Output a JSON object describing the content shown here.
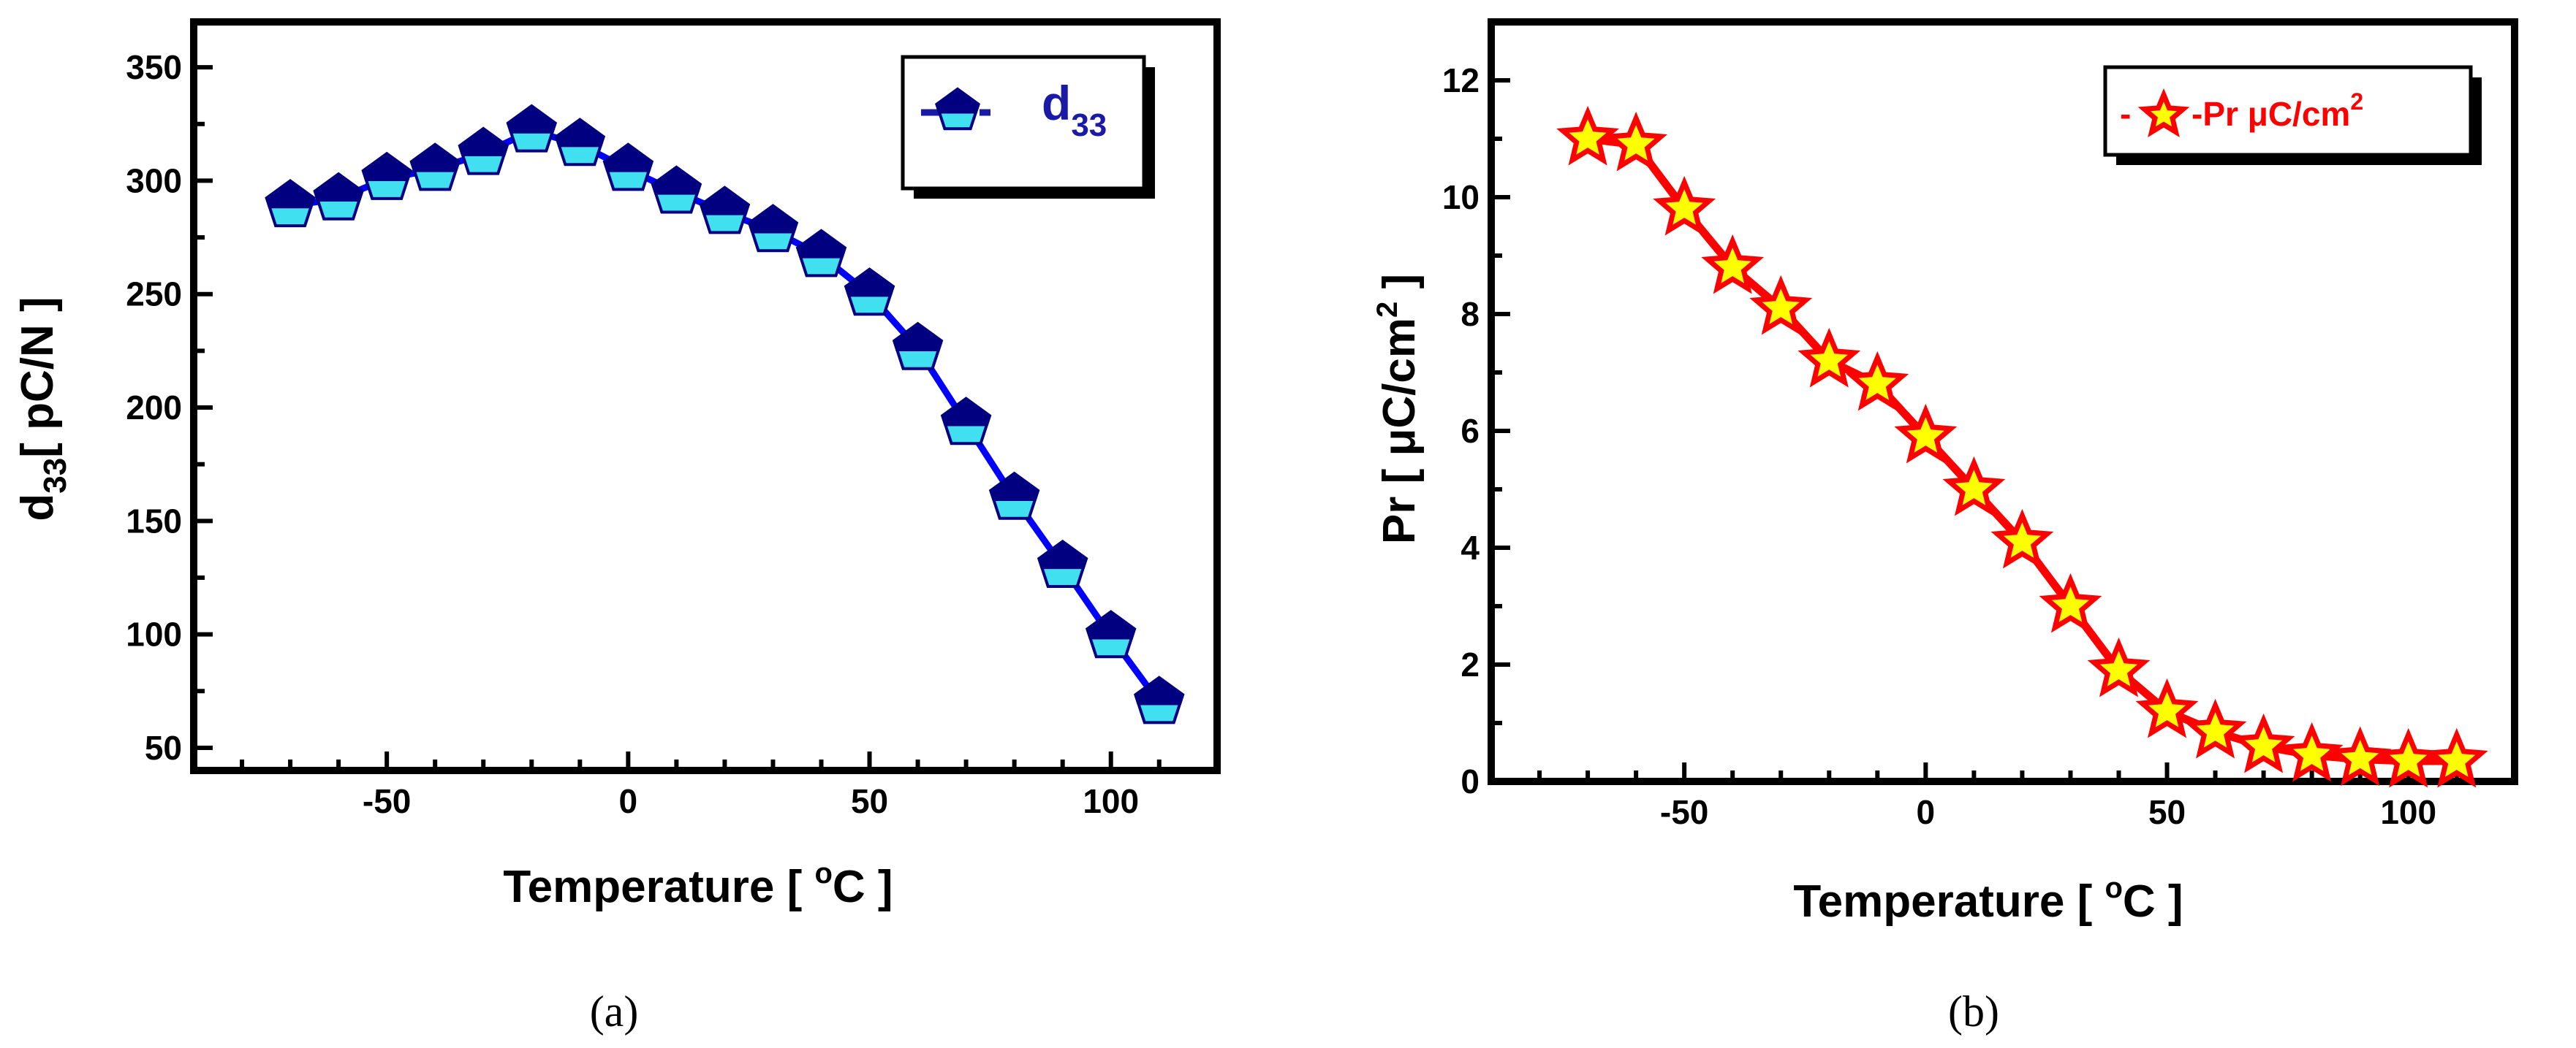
{
  "chart_data": [
    {
      "type": "line",
      "panel_label": "a",
      "x": [
        -70,
        -60,
        -50,
        -40,
        -30,
        -20,
        -10,
        0,
        10,
        20,
        30,
        40,
        50,
        60,
        70,
        80,
        90,
        100,
        110
      ],
      "series": [
        {
          "name": "d33",
          "values": [
            289,
            292,
            301,
            305,
            312,
            322,
            316,
            305,
            295,
            286,
            278,
            267,
            250,
            226,
            193,
            160,
            130,
            99,
            70
          ],
          "line_color": "#0000ff",
          "marker": "pentagon",
          "marker_top_color": "#000080",
          "marker_bottom_color": "#40e0f0"
        }
      ],
      "xlabel_main": "Temperature [ ",
      "xlabel_sup": "o",
      "xlabel_end": "C  ]",
      "ylabel_main": "d",
      "ylabel_sub": "33",
      "ylabel_end": "[ pC/N  ]",
      "xlim": [
        -90,
        122
      ],
      "ylim": [
        40,
        370
      ],
      "xticks": [
        -50,
        0,
        50,
        100
      ],
      "yticks": [
        50,
        100,
        150,
        200,
        250,
        300,
        350
      ],
      "legend": {
        "label_main": "d",
        "label_sub": "33",
        "position": "top-right",
        "text_color": "#1a1aa6"
      },
      "grid": false
    },
    {
      "type": "line",
      "panel_label": "b",
      "x": [
        -70,
        -60,
        -50,
        -40,
        -30,
        -20,
        -10,
        0,
        10,
        20,
        30,
        40,
        50,
        60,
        70,
        80,
        90,
        100,
        110
      ],
      "series": [
        {
          "name": "Pr μC/cm2",
          "values": [
            11.0,
            10.9,
            9.8,
            8.8,
            8.1,
            7.2,
            6.8,
            5.9,
            5.0,
            4.1,
            3.0,
            1.9,
            1.2,
            0.85,
            0.6,
            0.45,
            0.38,
            0.35,
            0.35
          ],
          "line_color": "#ff0000",
          "marker": "star",
          "marker_edge_color": "#ff0000",
          "marker_fill_color": "#ffff00"
        }
      ],
      "xlabel_main": "Temperature [ ",
      "xlabel_sup": "o",
      "xlabel_end": "C  ]",
      "ylabel_main": "Pr [ μC/cm",
      "ylabel_sup": "2",
      "ylabel_end": " ]",
      "xlim": [
        -90,
        122
      ],
      "ylim": [
        0,
        13
      ],
      "xticks": [
        -50,
        0,
        50,
        100
      ],
      "yticks": [
        0,
        2,
        4,
        6,
        8,
        10,
        12
      ],
      "legend": {
        "prefix": "-",
        "suffix": "-",
        "label_main": "Pr μC/cm",
        "label_sup": "2",
        "position": "top-right",
        "text_color": "#ff0000"
      },
      "grid": false
    }
  ],
  "captions": {
    "a": "(a)",
    "b": "(b)"
  }
}
